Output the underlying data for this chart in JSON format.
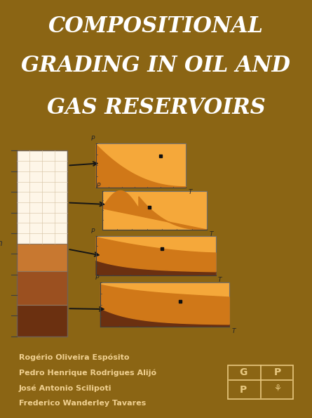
{
  "title_line1": "COMPOSITIONAL",
  "title_line2": "GRADING IN OIL AND",
  "title_line3": "GAS RESERVOIRS",
  "title_color": "#FFFFFF",
  "title_bg_color": "#8B6514",
  "author_bg_color": "#7A4010",
  "authors": [
    "Rogério Oliveira Espósito",
    "Pedro Henrique Rodrigues Alijó",
    "José Antonio Scilipoti",
    "Frederico Wanderley Tavares"
  ],
  "author_color": "#F0D090",
  "diagram_bg": "#CEBFAA",
  "col_cream": "#FEF6E8",
  "col_grid_color": "#D4C0A0",
  "orange_light": "#F5A83A",
  "orange_medium": "#D07818",
  "brown_medium": "#9B5020",
  "brown_dark": "#6B3010",
  "publisher_color": "#E8C880"
}
